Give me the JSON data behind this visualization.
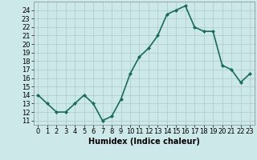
{
  "x": [
    0,
    1,
    2,
    3,
    4,
    5,
    6,
    7,
    8,
    9,
    10,
    11,
    12,
    13,
    14,
    15,
    16,
    17,
    18,
    19,
    20,
    21,
    22,
    23
  ],
  "y": [
    14,
    13,
    12,
    12,
    13,
    14,
    13,
    11,
    11.5,
    13.5,
    16.5,
    18.5,
    19.5,
    21,
    23.5,
    24,
    24.5,
    22,
    21.5,
    21.5,
    17.5,
    17,
    15.5,
    16.5
  ],
  "line_color": "#1a6b5a",
  "marker": "D",
  "marker_size": 2,
  "background_color": "#cce8e8",
  "grid_color": "#b0d0d0",
  "xlabel": "Humidex (Indice chaleur)",
  "xlim": [
    -0.5,
    23.5
  ],
  "ylim": [
    10.5,
    25.0
  ],
  "yticks": [
    11,
    12,
    13,
    14,
    15,
    16,
    17,
    18,
    19,
    20,
    21,
    22,
    23,
    24
  ],
  "xticks": [
    0,
    1,
    2,
    3,
    4,
    5,
    6,
    7,
    8,
    9,
    10,
    11,
    12,
    13,
    14,
    15,
    16,
    17,
    18,
    19,
    20,
    21,
    22,
    23
  ],
  "xlabel_fontsize": 7,
  "tick_fontsize": 6,
  "line_width": 1.2
}
